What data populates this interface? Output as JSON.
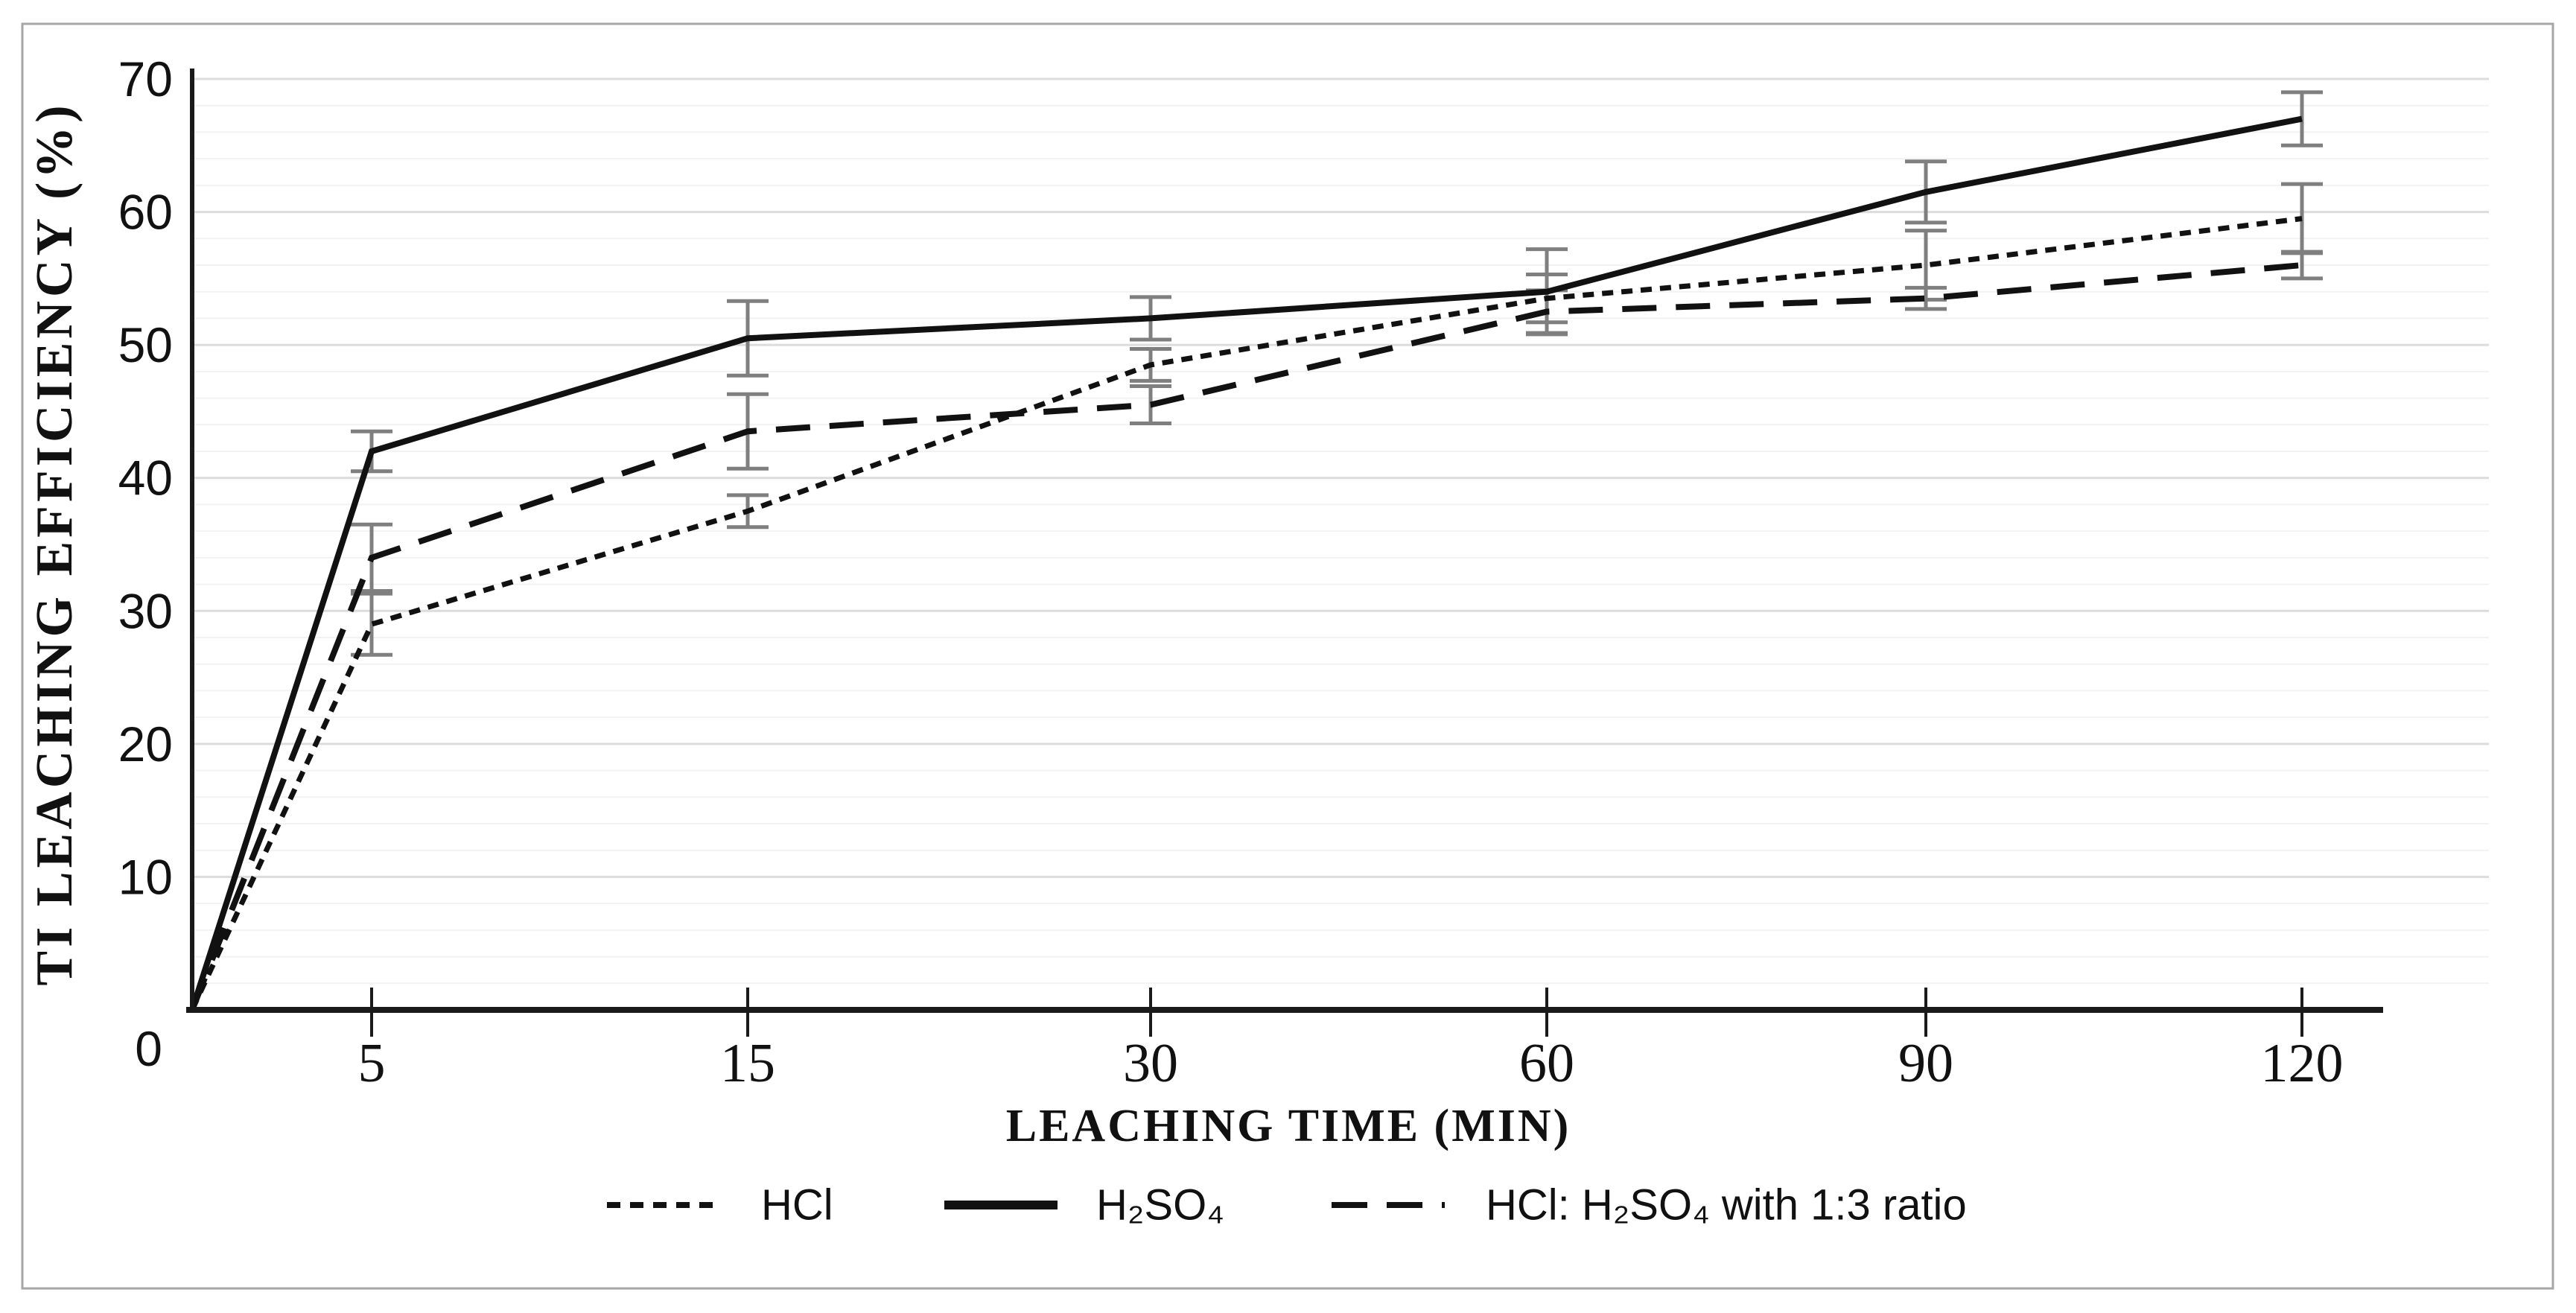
{
  "figure": {
    "background_color": "#ffffff",
    "border_color": "#a6a6a6"
  },
  "chart_data": {
    "type": "line",
    "title": "",
    "xlabel": "LEACHING TIME (MIN)",
    "ylabel": "TI LEACHING EFFICIENCY (%)",
    "x": [
      5,
      15,
      30,
      60,
      90,
      120
    ],
    "x_tick_labels": [
      "5",
      "15",
      "30",
      "60",
      "90",
      "120"
    ],
    "y_ticks": [
      0,
      10,
      20,
      30,
      40,
      50,
      60,
      70
    ],
    "y_tick_labels": [
      "0",
      "10",
      "20",
      "30",
      "40",
      "50",
      "60",
      "70"
    ],
    "ylim": [
      0,
      70
    ],
    "grid": {
      "visible": true,
      "minor_step": 2,
      "major_step": 10
    },
    "series_start_at_origin": true,
    "origin": {
      "x": 0,
      "y": 0
    },
    "series": [
      {
        "name": "HCl",
        "line_style": "dotted",
        "values": [
          29,
          37.5,
          48.5,
          53.5,
          56,
          59.5
        ],
        "error": [
          2.3,
          1.2,
          1.2,
          1.8,
          2.6,
          2.6
        ]
      },
      {
        "name": "H₂SO₄",
        "line_style": "solid",
        "values": [
          42,
          50.5,
          52,
          54,
          61.5,
          67
        ],
        "error": [
          1.5,
          2.8,
          1.6,
          3.2,
          2.3,
          2.0
        ]
      },
      {
        "name": "HCl: H₂SO₄ with 1:3 ratio",
        "line_style": "dashed",
        "values": [
          34,
          43.5,
          45.5,
          52.5,
          53.5,
          56
        ],
        "error": [
          2.5,
          2.8,
          1.4,
          1.6,
          0.8,
          1.0
        ]
      }
    ],
    "colors": {
      "line": "#111111",
      "error_bar": "#7f7f7f",
      "grid_minor": "#f2f2f2",
      "grid_major": "#dcdcdc",
      "axis": "#1a1a1a"
    },
    "legend": {
      "position": "bottom",
      "items": [
        {
          "label": "HCl",
          "style": "dotted"
        },
        {
          "label": "H₂SO₄",
          "style": "solid"
        },
        {
          "label": "HCl: H₂SO₄ with 1:3 ratio",
          "style": "dashed"
        }
      ]
    }
  }
}
